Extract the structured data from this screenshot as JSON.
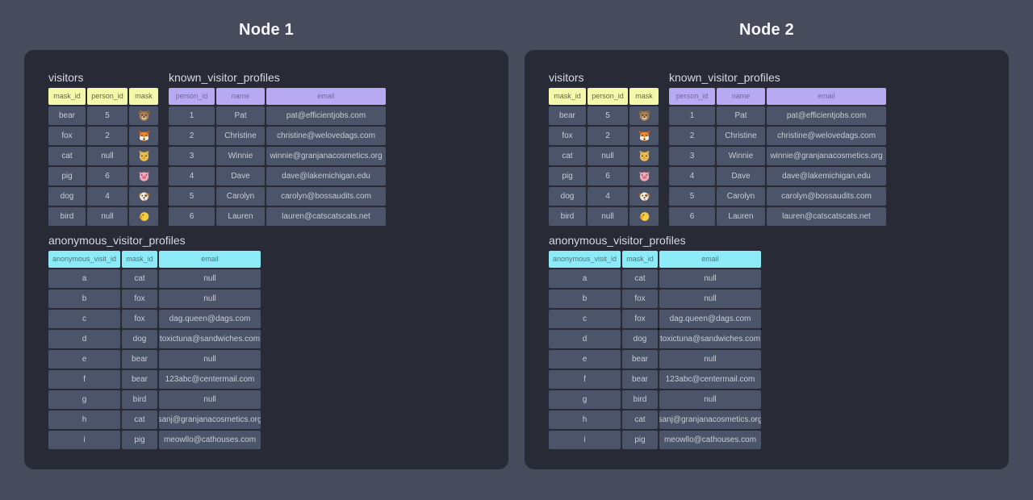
{
  "page": {
    "background": "#474b5c",
    "panel_background": "#282b36"
  },
  "nodes": [
    {
      "title": "Node 1"
    },
    {
      "title": "Node 2"
    }
  ],
  "tables": {
    "visitors": {
      "title": "visitors",
      "header_color": "#f4f8ab",
      "header_text_color": "#62664f",
      "columns": [
        "mask_id",
        "person_id",
        "mask"
      ],
      "icon_column": 2,
      "rows": [
        [
          "bear",
          "5",
          "bear-face"
        ],
        [
          "fox",
          "2",
          "fox-face"
        ],
        [
          "cat",
          "null",
          "cat-face"
        ],
        [
          "pig",
          "6",
          "pig-face"
        ],
        [
          "dog",
          "4",
          "dog-face"
        ],
        [
          "bird",
          "null",
          "bird-face"
        ]
      ]
    },
    "known_visitor_profiles": {
      "title": "known_visitor_profiles",
      "header_color": "#b7aaf2",
      "header_text_color": "#6f6b9d",
      "columns": [
        "person_id",
        "name",
        "email"
      ],
      "rows": [
        [
          "1",
          "Pat",
          "pat@efficientjobs.com"
        ],
        [
          "2",
          "Christine",
          "christine@welovedags.com"
        ],
        [
          "3",
          "Winnie",
          "winnie@granjanacosmetics.org"
        ],
        [
          "4",
          "Dave",
          "dave@lakemichigan.edu"
        ],
        [
          "5",
          "Carolyn",
          "carolyn@bossaudits.com"
        ],
        [
          "6",
          "Lauren",
          "lauren@catscatscats.net"
        ]
      ]
    },
    "anonymous_visitor_profiles": {
      "title": "anonymous_visitor_profiles",
      "header_color": "#8debf7",
      "header_text_color": "#527079",
      "columns": [
        "anonymous_visit_id",
        "mask_id",
        "email"
      ],
      "rows": [
        [
          "a",
          "cat",
          "null"
        ],
        [
          "b",
          "fox",
          "null"
        ],
        [
          "c",
          "fox",
          "dag.queen@dags.com"
        ],
        [
          "d",
          "dog",
          "toxictuna@sandwiches.com"
        ],
        [
          "e",
          "bear",
          "null"
        ],
        [
          "f",
          "bear",
          "123abc@centermail.com"
        ],
        [
          "g",
          "bird",
          "null"
        ],
        [
          "h",
          "cat",
          "sanj@granjanacosmetics.org"
        ],
        [
          "i",
          "pig",
          "meowllo@cathouses.com"
        ]
      ]
    }
  }
}
